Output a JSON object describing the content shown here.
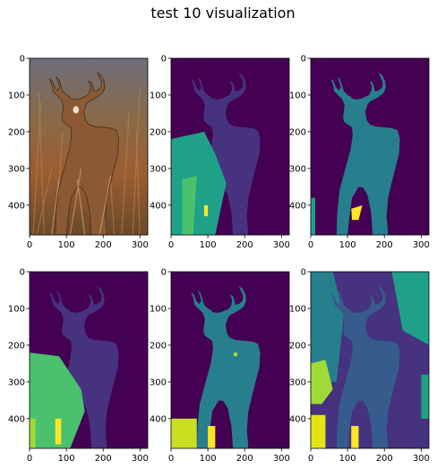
{
  "figure": {
    "title": "test 10 visualization"
  },
  "chart_data": [
    {
      "type": "heatmap",
      "content": "photo",
      "panel": 1,
      "xlim": [
        0,
        321
      ],
      "ylim": [
        481,
        0
      ],
      "xticks": [
        0,
        100,
        200,
        300
      ],
      "yticks": [
        0,
        100,
        200,
        300,
        400
      ],
      "image_description": "natural photo of a white-tailed deer standing in tall dry grass"
    },
    {
      "type": "heatmap",
      "panel": 2,
      "colormap": "viridis",
      "xlim": [
        0,
        321
      ],
      "ylim": [
        481,
        0
      ],
      "xticks": [
        0,
        100,
        200,
        300
      ],
      "yticks": [
        0,
        100,
        200,
        300,
        400
      ],
      "segments": 5
    },
    {
      "type": "heatmap",
      "panel": 3,
      "colormap": "viridis",
      "xlim": [
        0,
        321
      ],
      "ylim": [
        481,
        0
      ],
      "xticks": [
        0,
        100,
        200,
        300
      ],
      "yticks": [
        0,
        100,
        200,
        300,
        400
      ],
      "segments": 4
    },
    {
      "type": "heatmap",
      "panel": 4,
      "colormap": "viridis",
      "xlim": [
        0,
        321
      ],
      "ylim": [
        481,
        0
      ],
      "xticks": [
        0,
        100,
        200,
        300
      ],
      "yticks": [
        0,
        100,
        200,
        300,
        400
      ],
      "segments": 5
    },
    {
      "type": "heatmap",
      "panel": 5,
      "colormap": "viridis",
      "xlim": [
        0,
        321
      ],
      "ylim": [
        481,
        0
      ],
      "xticks": [
        0,
        100,
        200,
        300
      ],
      "yticks": [
        0,
        100,
        200,
        300,
        400
      ],
      "segments": 4
    },
    {
      "type": "heatmap",
      "panel": 6,
      "colormap": "viridis",
      "xlim": [
        0,
        321
      ],
      "ylim": [
        481,
        0
      ],
      "xticks": [
        0,
        100,
        200,
        300
      ],
      "yticks": [
        0,
        100,
        200,
        300,
        400
      ],
      "segments": 7
    }
  ],
  "colors": {
    "purple": "#440154",
    "indigo": "#46327e",
    "blue": "#365c8d",
    "teal": "#277f8e",
    "green": "#1fa187",
    "lightgreen": "#4ac16d",
    "lime": "#a0da39",
    "yellow": "#fde725",
    "yellow2": "#e2e418",
    "yellowgreen": "#c8e020"
  }
}
